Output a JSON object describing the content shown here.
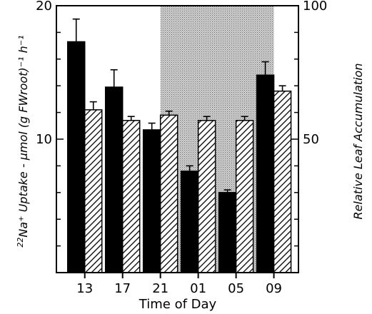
{
  "chart_data": {
    "type": "bar",
    "xlabel": "Time of Day",
    "ylabel_left_prefix": "22",
    "ylabel_left": "Na⁺ Uptake - μmol (g FWroot)⁻¹ h⁻¹",
    "ylabel_right": "Relative Leaf Accumulation",
    "categories": [
      "13",
      "17",
      "21",
      "01",
      "05",
      "09"
    ],
    "dark_period": {
      "from": "21",
      "to": "09"
    },
    "left_axis": {
      "ylim": [
        0,
        20
      ],
      "ticks": [
        10,
        20
      ],
      "tick_labels": [
        "10",
        "20"
      ]
    },
    "right_axis": {
      "ylim": [
        0,
        100
      ],
      "ticks": [
        50,
        100
      ],
      "tick_labels": [
        "50",
        "100"
      ]
    },
    "series": [
      {
        "fill": "solid-black",
        "axis": "left",
        "values": [
          17.3,
          13.9,
          10.7,
          7.6,
          6.0,
          14.8
        ],
        "errors": [
          1.7,
          1.3,
          0.5,
          0.4,
          0.2,
          1.0
        ]
      },
      {
        "fill": "hatched",
        "axis": "right",
        "values": [
          61,
          57,
          59,
          57,
          57,
          68
        ],
        "errors": [
          3,
          1.5,
          1.5,
          1.5,
          1.5,
          2
        ]
      }
    ],
    "grid": false,
    "colors": {
      "bar": "#000000",
      "shade": "#bdbdbd",
      "background": "#ffffff"
    }
  }
}
